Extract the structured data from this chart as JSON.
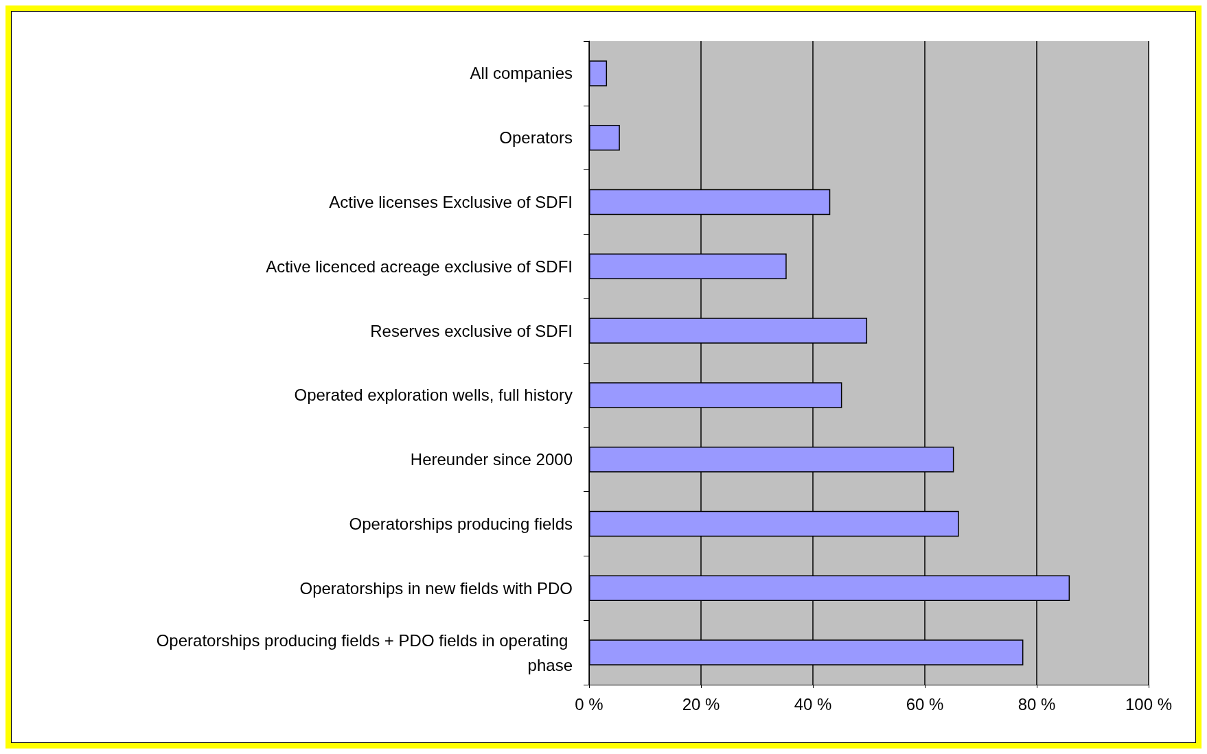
{
  "chart_data": {
    "type": "bar",
    "orientation": "horizontal",
    "categories": [
      "All companies",
      "Operators",
      "Active licenses Exclusive of SDFI",
      "Active licenced acreage exclusive of SDFI",
      "Reserves exclusive of SDFI",
      "Operated exploration wells, full history",
      "Hereunder since 2000",
      "Operatorships producing fields",
      "Operatorships in new fields with PDO",
      "Operatorships producing fields + PDO fields in operating phase"
    ],
    "values": [
      3.2,
      5.5,
      43.1,
      35.3,
      49.7,
      45.2,
      65.2,
      66.1,
      85.9,
      77.6
    ],
    "color": "#9999ff",
    "xlim": [
      0,
      100
    ],
    "xticks": [
      {
        "value": 0,
        "label": "0 %"
      },
      {
        "value": 20,
        "label": "20 %"
      },
      {
        "value": 40,
        "label": "40 %"
      },
      {
        "value": 60,
        "label": "60 %"
      },
      {
        "value": 80,
        "label": "80 %"
      },
      {
        "value": 100,
        "label": "100 %"
      }
    ],
    "grid": "x"
  }
}
